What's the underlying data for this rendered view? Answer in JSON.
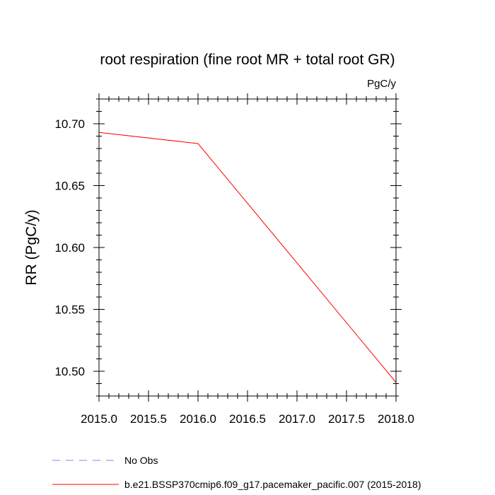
{
  "chart_data": {
    "type": "line",
    "title": "root respiration (fine root MR + total root GR)",
    "units_label": "PgC/y",
    "xlabel": "",
    "ylabel": "RR  (PgC/y)",
    "xlim": [
      2015.0,
      2018.0
    ],
    "ylim": [
      10.48,
      10.72
    ],
    "x_ticks": [
      2015.0,
      2015.5,
      2016.0,
      2016.5,
      2017.0,
      2017.5,
      2018.0
    ],
    "x_tick_labels": [
      "2015.0",
      "2015.5",
      "2016.0",
      "2016.5",
      "2017.0",
      "2017.5",
      "2018.0"
    ],
    "x_minor_step": 0.1,
    "y_ticks": [
      10.5,
      10.55,
      10.6,
      10.65,
      10.7
    ],
    "y_tick_labels": [
      "10.50",
      "10.55",
      "10.60",
      "10.65",
      "10.70"
    ],
    "y_minor_step": 0.01,
    "grid": false,
    "legend_position": "bottom-left",
    "series": [
      {
        "name": "b.e21.BSSP370cmip6.f09_g17.pacemaker_pacific.007 (2015-2018)",
        "color": "#ff0000",
        "style": "solid",
        "x": [
          2015.0,
          2016.0,
          2018.0
        ],
        "values": [
          10.693,
          10.684,
          10.491
        ]
      }
    ],
    "legend": [
      {
        "label": "No Obs",
        "color": "#8080ff",
        "style": "dashed"
      },
      {
        "label": "b.e21.BSSP370cmip6.f09_g17.pacemaker_pacific.007 (2015-2018)",
        "color": "#ff0000",
        "style": "solid"
      }
    ]
  }
}
